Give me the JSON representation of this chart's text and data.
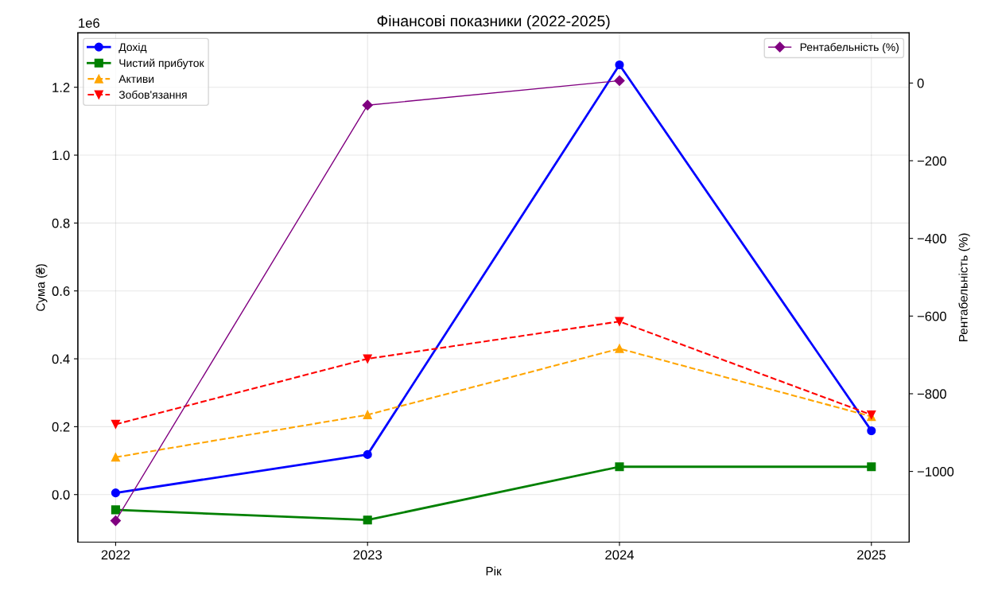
{
  "chart_data": {
    "type": "line",
    "title": "Фінансові показники (2022-2025)",
    "xlabel": "Рік",
    "ylabel": "Сума (₴)",
    "y2label": "Рентабельність (%)",
    "x": [
      2022,
      2023,
      2024,
      2025
    ],
    "xlim": [
      2021.85,
      2025.15
    ],
    "xticks": [
      2022,
      2023,
      2024,
      2025
    ],
    "ylim": [
      -0.14,
      1.36
    ],
    "yticks": [
      {
        "value": 0,
        "label": "0.0"
      },
      0.2,
      0.4,
      0.6,
      0.8,
      {
        "value": 1,
        "label": "1.0"
      },
      1.2
    ],
    "y2lim": [
      -1182,
      129
    ],
    "y2ticks": [
      {
        "value": -1000,
        "label": "−1000"
      },
      {
        "value": -800,
        "label": "−800"
      },
      {
        "value": -600,
        "label": "−600"
      },
      {
        "value": -400,
        "label": "−400"
      },
      {
        "value": -200,
        "label": "−200"
      },
      0
    ],
    "annotations": [
      "1e6"
    ],
    "grid": true,
    "legend": "top left",
    "series": [
      {
        "name": "Дохід",
        "color": "#0000ff",
        "values": [
          0.005,
          0.118,
          1.266,
          0.188
        ],
        "marker": "circle",
        "line_style": "solid"
      },
      {
        "name": "Чистий прибуток",
        "color": "#008000",
        "values": [
          -0.045,
          -0.075,
          0.082,
          0.082
        ],
        "marker": "square",
        "line_style": "solid"
      },
      {
        "name": "Активи",
        "color": "#ffa500",
        "values": [
          0.11,
          0.235,
          0.43,
          0.23
        ],
        "marker": "triangle",
        "line_style": "dashed"
      },
      {
        "name": "Зобов'язання",
        "color": "#ff0000",
        "values": [
          0.207,
          0.4,
          0.51,
          0.235
        ],
        "marker": "triangle_down",
        "line_style": "dashed"
      },
      {
        "name": "Рентабельність (%)",
        "color": "#800080",
        "values": [
          -1127,
          -57,
          6,
          null
        ],
        "marker": "diamond",
        "line_style": "solid",
        "axis": "y2"
      }
    ]
  }
}
